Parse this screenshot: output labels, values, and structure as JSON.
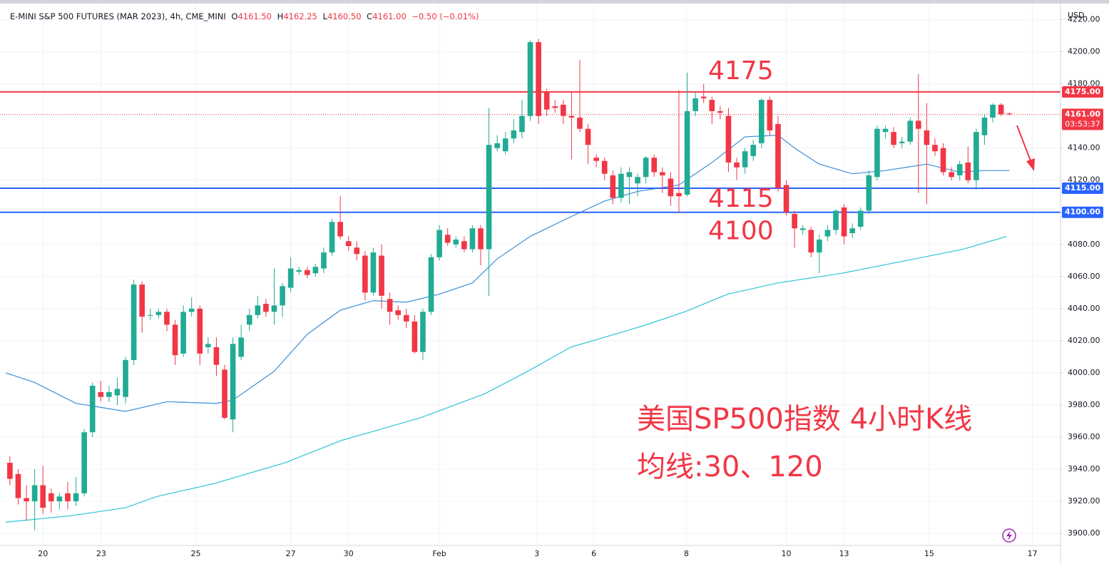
{
  "header": {
    "symbol": "E-MINI S&P 500 FUTURES (MAR 2023), 4h, CME_MINI",
    "o_label": "O",
    "open": "4161.50",
    "h_label": "H",
    "high": "4162.25",
    "l_label": "L",
    "low": "4160.50",
    "c_label": "C",
    "close": "4161.00",
    "change": "−0.50 (−0.01%)"
  },
  "chart_data": {
    "type": "candlestick",
    "currency": "USD",
    "up_color": "#22ab94",
    "down_color": "#f23645",
    "ohlc": [
      [
        3944,
        3948,
        3930,
        3934
      ],
      [
        3937,
        3940,
        3918,
        3922
      ],
      [
        3922,
        3930,
        3908,
        3920
      ],
      [
        3920,
        3940,
        3902,
        3930
      ],
      [
        3930,
        3942,
        3912,
        3916
      ],
      [
        3925,
        3928,
        3913,
        3920
      ],
      [
        3920,
        3925,
        3915,
        3923
      ],
      [
        3925,
        3932,
        3915,
        3920
      ],
      [
        3920,
        3935,
        3917,
        3925
      ],
      [
        3925,
        3965,
        3923,
        3963
      ],
      [
        3963,
        3994,
        3960,
        3992
      ],
      [
        3988,
        3995,
        3982,
        3985
      ],
      [
        3985,
        3992,
        3982,
        3988
      ],
      [
        3986,
        3997,
        3980,
        3990
      ],
      [
        3985,
        4010,
        3981,
        4008
      ],
      [
        4008,
        4058,
        4005,
        4055
      ],
      [
        4055,
        4057,
        4025,
        4035
      ],
      [
        4036,
        4040,
        4033,
        4036
      ],
      [
        4036,
        4040,
        4034,
        4038
      ],
      [
        4038,
        4040,
        4026,
        4030
      ],
      [
        4030,
        4033,
        4005,
        4011
      ],
      [
        4012,
        4042,
        4010,
        4038
      ],
      [
        4038,
        4047,
        4035,
        4040
      ],
      [
        4040,
        4042,
        4005,
        4012
      ],
      [
        4016,
        4022,
        4012,
        4018
      ],
      [
        4016,
        4022,
        3998,
        4005
      ],
      [
        4002,
        4005,
        3971,
        3972
      ],
      [
        3971,
        4022,
        3963,
        4018
      ],
      [
        4010,
        4030,
        4008,
        4022
      ],
      [
        4030,
        4040,
        4026,
        4036
      ],
      [
        4036,
        4048,
        4034,
        4042
      ],
      [
        4043,
        4046,
        4035,
        4038
      ],
      [
        4038,
        4065,
        4030,
        4042
      ],
      [
        4042,
        4056,
        4035,
        4054
      ],
      [
        4053,
        4072,
        4050,
        4065
      ],
      [
        4063,
        4066,
        4061,
        4064
      ],
      [
        4064,
        4066,
        4059,
        4061
      ],
      [
        4062,
        4068,
        4060,
        4066
      ],
      [
        4065,
        4078,
        4062,
        4075
      ],
      [
        4075,
        4096,
        4073,
        4094
      ],
      [
        4094,
        4110,
        4083,
        4085
      ],
      [
        4082,
        4085,
        4076,
        4079
      ],
      [
        4078,
        4082,
        4070,
        4074
      ],
      [
        4073,
        4076,
        4045,
        4050
      ],
      [
        4050,
        4078,
        4048,
        4075
      ],
      [
        4073,
        4080,
        4040,
        4048
      ],
      [
        4046,
        4050,
        4030,
        4038
      ],
      [
        4039,
        4042,
        4033,
        4036
      ],
      [
        4036,
        4040,
        4028,
        4032
      ],
      [
        4032,
        4036,
        4012,
        4013
      ],
      [
        4013,
        4040,
        4008,
        4038
      ],
      [
        4038,
        4074,
        4036,
        4072
      ],
      [
        4072,
        4092,
        4070,
        4089
      ],
      [
        4086,
        4090,
        4079,
        4081
      ],
      [
        4080,
        4085,
        4078,
        4083
      ],
      [
        4082,
        4085,
        4075,
        4077
      ],
      [
        4077,
        4092,
        4075,
        4090
      ],
      [
        4090,
        4092,
        4067,
        4077
      ],
      [
        4077,
        4165,
        4048,
        4142
      ],
      [
        4140,
        4148,
        4138,
        4143
      ],
      [
        4138,
        4150,
        4136,
        4146
      ],
      [
        4146,
        4158,
        4143,
        4151
      ],
      [
        4150,
        4170,
        4146,
        4160
      ],
      [
        4160,
        4207,
        4157,
        4206
      ],
      [
        4206,
        4208,
        4155,
        4160
      ],
      [
        4175,
        4177,
        4160,
        4164
      ],
      [
        4166,
        4170,
        4162,
        4165
      ],
      [
        4167,
        4170,
        4155,
        4160
      ],
      [
        4160,
        4175,
        4133,
        4159
      ],
      [
        4159,
        4195,
        4150,
        4152
      ],
      [
        4152,
        4155,
        4130,
        4142
      ],
      [
        4134,
        4136,
        4128,
        4132
      ],
      [
        4132,
        4134,
        4120,
        4124
      ],
      [
        4123,
        4126,
        4105,
        4109
      ],
      [
        4109,
        4128,
        4106,
        4124
      ],
      [
        4122,
        4128,
        4105,
        4125
      ],
      [
        4118,
        4124,
        4110,
        4122
      ],
      [
        4122,
        4135,
        4118,
        4134
      ],
      [
        4134,
        4136,
        4122,
        4125
      ],
      [
        4125,
        4128,
        4112,
        4123
      ],
      [
        4121,
        4125,
        4104,
        4110
      ],
      [
        4112,
        4176,
        4100,
        4110
      ],
      [
        4111,
        4187,
        4110,
        4163
      ],
      [
        4163,
        4175,
        4160,
        4171
      ],
      [
        4172,
        4180,
        4168,
        4171
      ],
      [
        4170,
        4172,
        4155,
        4163
      ],
      [
        4163,
        4166,
        4158,
        4162
      ],
      [
        4160,
        4165,
        4125,
        4131
      ],
      [
        4131,
        4134,
        4120,
        4128
      ],
      [
        4128,
        4140,
        4124,
        4138
      ],
      [
        4135,
        4145,
        4132,
        4142
      ],
      [
        4143,
        4171,
        4140,
        4170
      ],
      [
        4170,
        4172,
        4148,
        4151
      ],
      [
        4155,
        4160,
        4113,
        4115
      ],
      [
        4117,
        4120,
        4098,
        4100
      ],
      [
        4099,
        4101,
        4078,
        4090
      ],
      [
        4089,
        4092,
        4086,
        4090
      ],
      [
        4089,
        4091,
        4072,
        4075
      ],
      [
        4075,
        4086,
        4062,
        4083
      ],
      [
        4085,
        4092,
        4082,
        4089
      ],
      [
        4089,
        4102,
        4086,
        4101
      ],
      [
        4103,
        4105,
        4080,
        4085
      ],
      [
        4087,
        4093,
        4084,
        4090
      ],
      [
        4091,
        4103,
        4089,
        4101
      ],
      [
        4101,
        4126,
        4099,
        4123
      ],
      [
        4122,
        4154,
        4120,
        4152
      ],
      [
        4150,
        4154,
        4146,
        4152
      ],
      [
        4150,
        4153,
        4140,
        4142
      ],
      [
        4143,
        4147,
        4140,
        4144
      ],
      [
        4144,
        4159,
        4142,
        4157
      ],
      [
        4157,
        4186,
        4112,
        4152
      ],
      [
        4151,
        4168,
        4105,
        4142
      ],
      [
        4142,
        4146,
        4135,
        4138
      ],
      [
        4140,
        4143,
        4123,
        4125
      ],
      [
        4125,
        4128,
        4120,
        4122
      ],
      [
        4123,
        4132,
        4120,
        4130
      ],
      [
        4131,
        4141,
        4118,
        4120
      ],
      [
        4120,
        4152,
        4114,
        4150
      ],
      [
        4148,
        4161,
        4142,
        4159
      ],
      [
        4159,
        4168,
        4156,
        4167
      ],
      [
        4167,
        4168,
        4160,
        4161
      ],
      [
        4161.5,
        4162.25,
        4160.5,
        4161
      ]
    ],
    "ma_series": [
      {
        "color": "#3b8ed8",
        "x": [
          -0.5,
          3,
          8,
          14,
          19,
          25,
          27,
          32,
          36,
          40,
          44,
          48,
          52,
          56,
          59,
          63,
          67,
          72,
          76,
          81,
          85,
          89,
          93,
          95,
          98,
          102,
          106,
          111,
          115,
          118,
          121
        ],
        "values": [
          4000,
          3994,
          3981,
          3976,
          3982,
          3981,
          3983,
          4001,
          4024,
          4039,
          4045,
          4044,
          4049,
          4056,
          4071,
          4085,
          4095,
          4107,
          4113,
          4117,
          4131,
          4147,
          4148,
          4140,
          4130,
          4124,
          4126,
          4130,
          4125,
          4126,
          4126
        ]
      },
      {
        "color": "#2ec4d6",
        "x": [
          -0.5,
          7.4,
          14,
          17.8,
          24.7,
          33.3,
          40.2,
          49.7,
          57.5,
          62.7,
          67.9,
          76.5,
          81.7,
          86.9,
          93,
          100.7,
          107.6,
          115.4,
          120.7
        ],
        "values": [
          3907,
          3911,
          3916,
          3923,
          3931,
          3944,
          3958,
          3972,
          3987,
          4001,
          4016,
          4029,
          4038,
          4049,
          4056,
          4062,
          4069,
          4077,
          4085
        ]
      }
    ],
    "levels": [
      {
        "value": 4175,
        "label": "4175.00",
        "color": "#f23645"
      },
      {
        "value": 4115,
        "label": "4115.00",
        "color": "#2962ff"
      },
      {
        "value": 4100,
        "label": "4100.00",
        "color": "#2962ff"
      }
    ],
    "last_price": {
      "value": 4161,
      "label": "4161.00",
      "countdown": "03:53:37"
    },
    "xlim": [
      -1.2,
      127.2
    ],
    "ylim": [
      3892.5,
      4230
    ],
    "yticks": [
      {
        "value": 3900,
        "label": "3900.00"
      },
      {
        "value": 3920,
        "label": "3920.00"
      },
      {
        "value": 3940,
        "label": "3940.00"
      },
      {
        "value": 3960,
        "label": "3960.00"
      },
      {
        "value": 3980,
        "label": "3980.00"
      },
      {
        "value": 4000,
        "label": "4000.00"
      },
      {
        "value": 4020,
        "label": "4020.00"
      },
      {
        "value": 4040,
        "label": "4040.00"
      },
      {
        "value": 4060,
        "label": "4060.00"
      },
      {
        "value": 4080,
        "label": "4080.00"
      },
      {
        "value": 4100,
        "label": "4100.00"
      },
      {
        "value": 4120,
        "label": "4120.00"
      },
      {
        "value": 4140,
        "label": "4140.00"
      },
      {
        "value": 4160,
        "label": "4160.00"
      },
      {
        "value": 4180,
        "label": "4180.00"
      },
      {
        "value": 4200,
        "label": "4200.00"
      },
      {
        "value": 4220,
        "label": "4220.00"
      }
    ],
    "xticks": [
      {
        "value": 4,
        "label": "20"
      },
      {
        "value": 11.05,
        "label": "23"
      },
      {
        "value": 22.5,
        "label": "25"
      },
      {
        "value": 34,
        "label": "27"
      },
      {
        "value": 41,
        "label": "30"
      },
      {
        "value": 52,
        "label": "Feb"
      },
      {
        "value": 63.8,
        "label": "3"
      },
      {
        "value": 70.7,
        "label": "6"
      },
      {
        "value": 81.9,
        "label": "8"
      },
      {
        "value": 94,
        "label": "10"
      },
      {
        "value": 101,
        "label": "13"
      },
      {
        "value": 111.3,
        "label": "15"
      },
      {
        "value": 123.8,
        "label": "17"
      }
    ],
    "grid": true,
    "annotations": [
      {
        "text": "4175",
        "value": 4175
      },
      {
        "text": "4115",
        "value": 4115
      },
      {
        "text": "4100",
        "value": 4100
      }
    ],
    "caption": [
      "美国SP500指数 4小时K线",
      "均线:30、120"
    ]
  }
}
